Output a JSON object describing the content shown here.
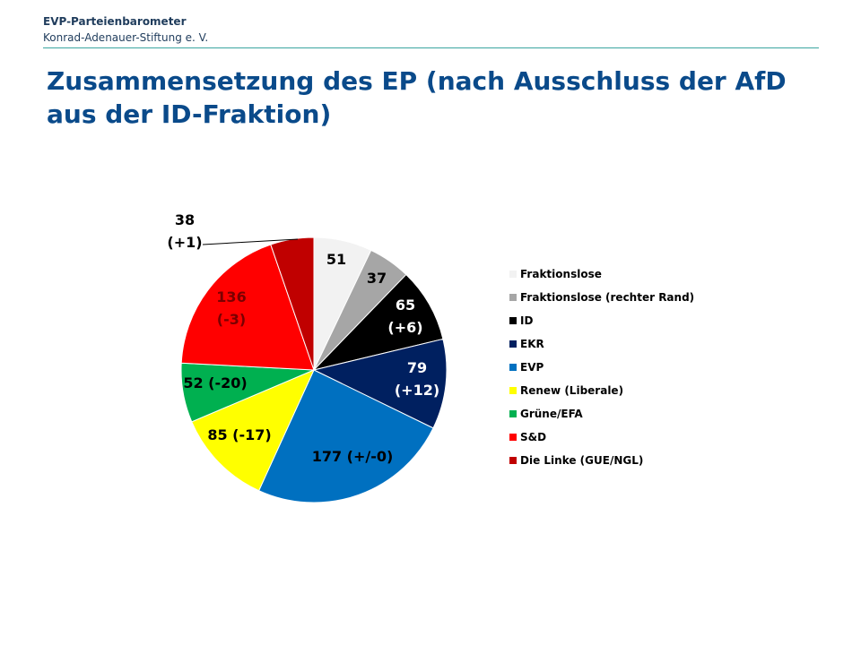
{
  "header": {
    "org_title": "EVP-Parteienbarometer",
    "org_sub": "Konrad-Adenauer-Stiftung e. V."
  },
  "chart_data": {
    "type": "pie",
    "title": "Zusammensetzung des EP (nach Ausschluss der AfD aus der ID-Fraktion)",
    "legend_position": "right",
    "start": "12 o'clock, clockwise",
    "slices": [
      {
        "name": "Fraktionslose",
        "value": 51,
        "label": [
          "51"
        ],
        "color": "#f2f2f2",
        "label_color": "#000000"
      },
      {
        "name": "Fraktionslose (rechter Rand)",
        "value": 37,
        "label": [
          "37"
        ],
        "color": "#a6a6a6",
        "label_color": "#000000"
      },
      {
        "name": "ID",
        "value": 65,
        "label": [
          "65",
          "(+6)"
        ],
        "color": "#000000",
        "label_color": "#ffffff"
      },
      {
        "name": "EKR",
        "value": 79,
        "label": [
          "79",
          "(+12)"
        ],
        "color": "#002060",
        "label_color": "#ffffff"
      },
      {
        "name": "EVP",
        "value": 177,
        "label": [
          "177 (+/-0)"
        ],
        "color": "#0070c0",
        "label_color": "#000000"
      },
      {
        "name": "Renew (Liberale)",
        "value": 85,
        "label": [
          "85 (-17)"
        ],
        "color": "#ffff00",
        "label_color": "#000000"
      },
      {
        "name": "Grüne/EFA",
        "value": 52,
        "label": [
          "52 (-20)"
        ],
        "color": "#00b050",
        "label_color": "#000000"
      },
      {
        "name": "S&D",
        "value": 136,
        "label": [
          "136",
          "(-3)"
        ],
        "color": "#ff0000",
        "label_color": "#7a0000"
      },
      {
        "name": "Die Linke (GUE/NGL)",
        "value": 38,
        "label": [
          "38",
          "(+1)"
        ],
        "color": "#c00000",
        "label_color": "#000000"
      }
    ]
  }
}
